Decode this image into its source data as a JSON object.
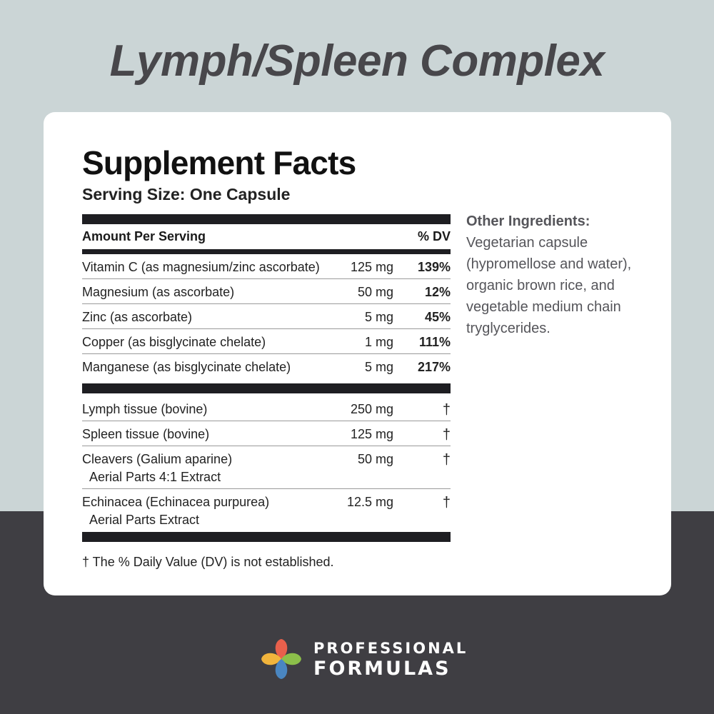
{
  "product_title": "Lymph/Spleen Complex",
  "facts": {
    "title": "Supplement Facts",
    "serving_size": "Serving Size: One Capsule",
    "header": {
      "amount_label": "Amount Per Serving",
      "dv_label": "% DV"
    },
    "vitamins": [
      {
        "name": "Vitamin C (as magnesium/zinc ascorbate)",
        "amount": "125 mg",
        "dv": "139%"
      },
      {
        "name": "Magnesium (as ascorbate)",
        "amount": "50 mg",
        "dv": "12%"
      },
      {
        "name": "Zinc (as ascorbate)",
        "amount": "5 mg",
        "dv": "45%"
      },
      {
        "name": "Copper (as bisglycinate chelate)",
        "amount": "1 mg",
        "dv": "111%"
      },
      {
        "name": "Manganese (as bisglycinate chelate)",
        "amount": "5 mg",
        "dv": "217%"
      }
    ],
    "other_items": [
      {
        "name": "Lymph tissue (bovine)",
        "sub": "",
        "amount": "250 mg",
        "dv": "†"
      },
      {
        "name": "Spleen tissue (bovine)",
        "sub": "",
        "amount": "125 mg",
        "dv": "†"
      },
      {
        "name": "Cleavers (Galium aparine)",
        "sub": "Aerial Parts 4:1 Extract",
        "amount": "50 mg",
        "dv": "†"
      },
      {
        "name": "Echinacea (Echinacea purpurea)",
        "sub": "Aerial Parts Extract",
        "amount": "12.5 mg",
        "dv": "†"
      }
    ],
    "footnote": "† The % Daily Value (DV) is not established."
  },
  "other_ingredients": {
    "title": "Other Ingredients:",
    "lines": [
      "Vegetarian capsule",
      "(hypromellose and water),",
      "organic brown rice, and",
      "vegetable medium chain",
      "tryglycerides."
    ]
  },
  "brand": {
    "line1": "PROFESSIONAL",
    "line2": "FORMULAS",
    "logo_colors": {
      "top": "#e8604c",
      "left": "#f1b43c",
      "right": "#8cbf4a",
      "bottom": "#4a86c1"
    }
  }
}
